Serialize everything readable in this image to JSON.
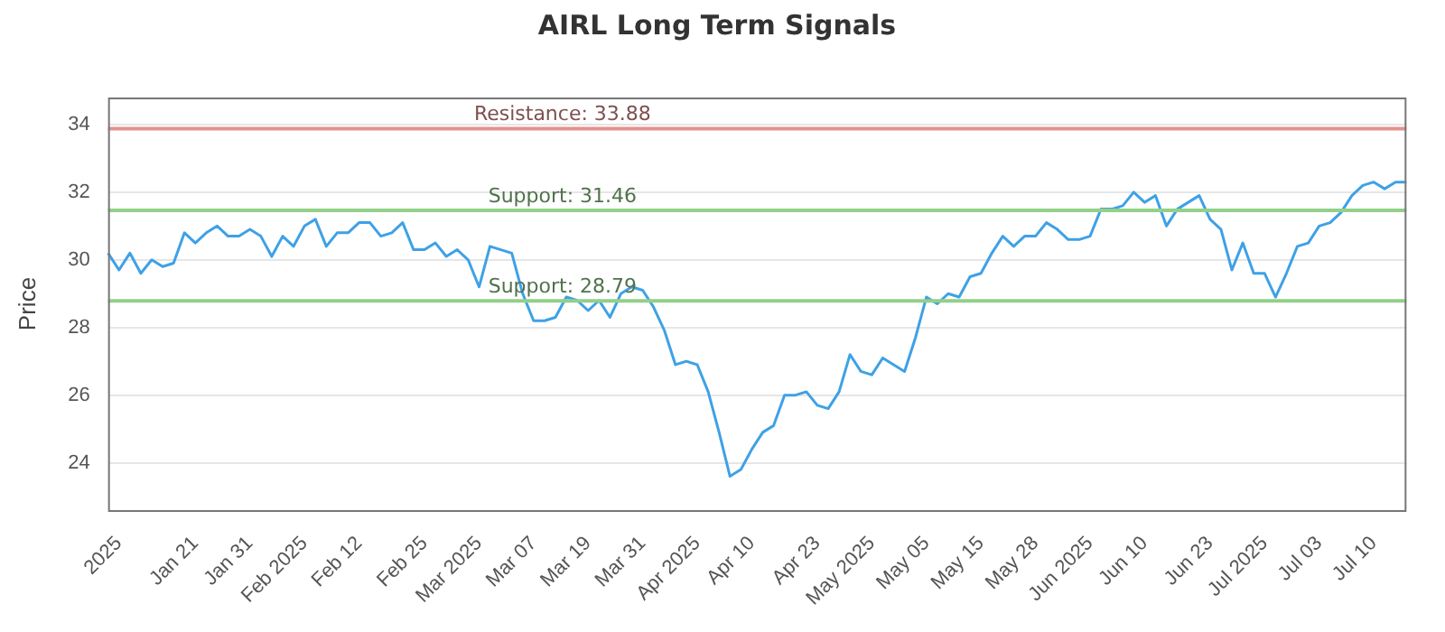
{
  "chart_data": {
    "type": "line",
    "title": "AIRL Long Term Signals",
    "ylabel": "Price",
    "categories": [
      null,
      "2025",
      null,
      null,
      null,
      null,
      null,
      null,
      "Jan 21",
      null,
      null,
      null,
      null,
      "Jan 31",
      null,
      null,
      null,
      null,
      "Feb 2025",
      null,
      null,
      null,
      null,
      "Feb 12",
      null,
      null,
      null,
      null,
      null,
      "Feb 25",
      null,
      null,
      null,
      null,
      "Mar 2025",
      null,
      null,
      null,
      null,
      "Mar 07",
      null,
      null,
      null,
      null,
      "Mar 19",
      null,
      null,
      null,
      null,
      "Mar 31",
      null,
      null,
      null,
      null,
      "Apr 2025",
      null,
      null,
      null,
      null,
      "Apr 10",
      null,
      null,
      null,
      null,
      null,
      "Apr 23",
      null,
      null,
      null,
      null,
      "May 2025",
      null,
      null,
      null,
      null,
      "May 05",
      null,
      null,
      null,
      null,
      "May 15",
      null,
      null,
      null,
      null,
      "May 28",
      null,
      null,
      null,
      null,
      "Jun 2025",
      null,
      null,
      null,
      null,
      "Jun 10",
      null,
      null,
      null,
      null,
      null,
      "Jun 23",
      null,
      null,
      null,
      null,
      "Jul 2025",
      null,
      null,
      null,
      null,
      "Jul 03",
      null,
      null,
      null,
      null,
      "Jul 10",
      null,
      null,
      null
    ],
    "series": [
      {
        "color": "#3ea1e6",
        "values": [
          30.2,
          29.7,
          30.2,
          29.6,
          30.0,
          29.8,
          29.9,
          30.8,
          30.5,
          30.8,
          31.0,
          30.7,
          30.7,
          30.9,
          30.7,
          30.1,
          30.7,
          30.4,
          31.0,
          31.2,
          30.4,
          30.8,
          30.8,
          31.1,
          31.1,
          30.7,
          30.8,
          31.1,
          30.3,
          30.3,
          30.5,
          30.1,
          30.3,
          30.0,
          29.2,
          30.4,
          30.3,
          30.2,
          29.0,
          28.2,
          28.2,
          28.3,
          28.9,
          28.8,
          28.5,
          28.8,
          28.3,
          29.0,
          29.2,
          29.1,
          28.6,
          27.9,
          26.9,
          27.0,
          26.9,
          26.1,
          24.9,
          23.6,
          23.8,
          24.4,
          24.9,
          25.1,
          26.0,
          26.0,
          26.1,
          25.7,
          25.6,
          26.1,
          27.2,
          26.7,
          26.6,
          27.1,
          26.9,
          26.7,
          27.7,
          28.9,
          28.7,
          29.0,
          28.9,
          29.5,
          29.6,
          30.2,
          30.7,
          30.4,
          30.7,
          30.7,
          31.1,
          30.9,
          30.6,
          30.6,
          30.7,
          31.5,
          31.5,
          31.6,
          32.0,
          31.7,
          31.9,
          31.0,
          31.5,
          31.7,
          31.9,
          31.2,
          30.9,
          29.7,
          30.5,
          29.6,
          29.6,
          28.9,
          29.6,
          30.4,
          30.5,
          31.0,
          31.1,
          31.4,
          31.9,
          32.2,
          32.3,
          32.1,
          32.3,
          32.3
        ]
      }
    ],
    "ylim": [
      22.6,
      34.8
    ],
    "yticks": [
      24,
      26,
      28,
      30,
      32,
      34
    ],
    "grid": "y",
    "legend": false,
    "marker": "none",
    "line_style": "solid",
    "ref_lines": [
      {
        "axis": "y",
        "value": 33.88,
        "label": "Resistance: 33.88",
        "color": "#e3928e"
      },
      {
        "axis": "y",
        "value": 31.46,
        "label": "Support: 31.46",
        "color": "#93d08a"
      },
      {
        "axis": "y",
        "value": 28.79,
        "label": "Support: 28.79",
        "color": "#93d08a"
      }
    ]
  }
}
